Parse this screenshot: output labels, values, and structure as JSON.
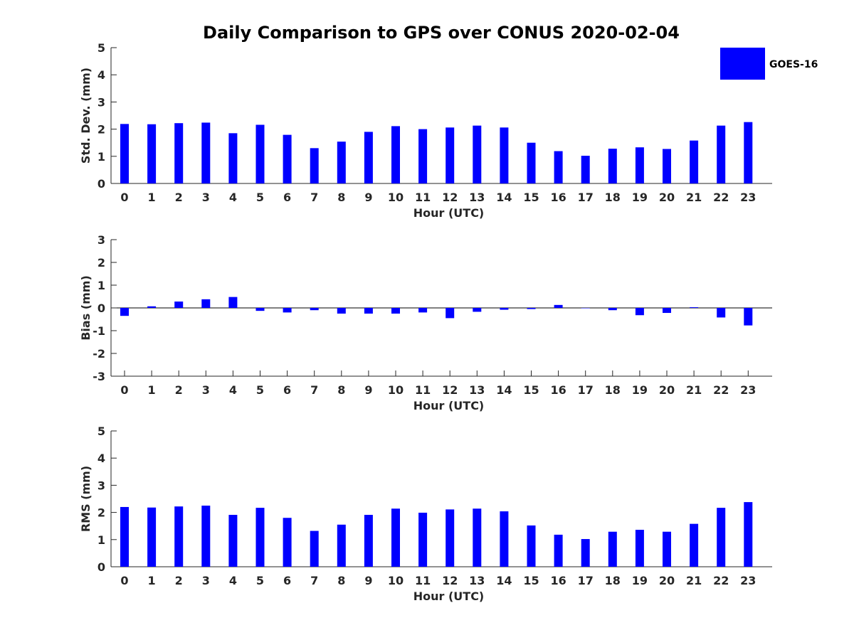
{
  "title": "Daily Comparison to GPS over CONUS 2020-02-04",
  "legend": {
    "label": "GOES-16",
    "color": "#0000ff",
    "placement": "top-right"
  },
  "chart_data": [
    {
      "type": "bar",
      "title": "Daily Comparison to GPS over CONUS 2020-02-04",
      "xlabel": "Hour (UTC)",
      "ylabel": "Std. Dev. (mm)",
      "ylim": [
        0,
        5
      ],
      "yticks": [
        "0",
        "1",
        "2",
        "3",
        "4",
        "5"
      ],
      "categories": [
        "0",
        "1",
        "2",
        "3",
        "4",
        "5",
        "6",
        "7",
        "8",
        "9",
        "10",
        "11",
        "12",
        "13",
        "14",
        "15",
        "16",
        "17",
        "18",
        "19",
        "20",
        "21",
        "22",
        "23"
      ],
      "series": [
        {
          "name": "GOES-16",
          "color": "#0000ff",
          "values": [
            2.19,
            2.18,
            2.22,
            2.24,
            1.85,
            2.16,
            1.79,
            1.3,
            1.54,
            1.9,
            2.11,
            2.0,
            2.06,
            2.13,
            2.06,
            1.5,
            1.19,
            1.02,
            1.28,
            1.33,
            1.27,
            1.58,
            2.13,
            2.26
          ]
        }
      ]
    },
    {
      "type": "bar",
      "xlabel": "Hour (UTC)",
      "ylabel": "Bias (mm)",
      "ylim": [
        -3,
        3
      ],
      "yticks": [
        "-3",
        "-2",
        "-1",
        "0",
        "1",
        "2",
        "3"
      ],
      "categories": [
        "0",
        "1",
        "2",
        "3",
        "4",
        "5",
        "6",
        "7",
        "8",
        "9",
        "10",
        "11",
        "12",
        "13",
        "14",
        "15",
        "16",
        "17",
        "18",
        "19",
        "20",
        "21",
        "22",
        "23"
      ],
      "series": [
        {
          "name": "GOES-16",
          "color": "#0000ff",
          "values": [
            -0.35,
            0.07,
            0.28,
            0.38,
            0.48,
            -0.13,
            -0.2,
            -0.1,
            -0.25,
            -0.25,
            -0.25,
            -0.2,
            -0.45,
            -0.17,
            -0.08,
            -0.05,
            0.13,
            -0.01,
            -0.1,
            -0.32,
            -0.22,
            0.03,
            -0.42,
            -0.77
          ]
        }
      ]
    },
    {
      "type": "bar",
      "xlabel": "Hour (UTC)",
      "ylabel": "RMS (mm)",
      "ylim": [
        0,
        5
      ],
      "yticks": [
        "0",
        "1",
        "2",
        "3",
        "4",
        "5"
      ],
      "categories": [
        "0",
        "1",
        "2",
        "3",
        "4",
        "5",
        "6",
        "7",
        "8",
        "9",
        "10",
        "11",
        "12",
        "13",
        "14",
        "15",
        "16",
        "17",
        "18",
        "19",
        "20",
        "21",
        "22",
        "23"
      ],
      "series": [
        {
          "name": "GOES-16",
          "color": "#0000ff",
          "values": [
            2.2,
            2.18,
            2.22,
            2.25,
            1.91,
            2.17,
            1.8,
            1.32,
            1.55,
            1.91,
            2.14,
            1.99,
            2.11,
            2.14,
            2.04,
            1.52,
            1.18,
            1.02,
            1.29,
            1.36,
            1.29,
            1.58,
            2.17,
            2.38
          ]
        }
      ]
    }
  ]
}
